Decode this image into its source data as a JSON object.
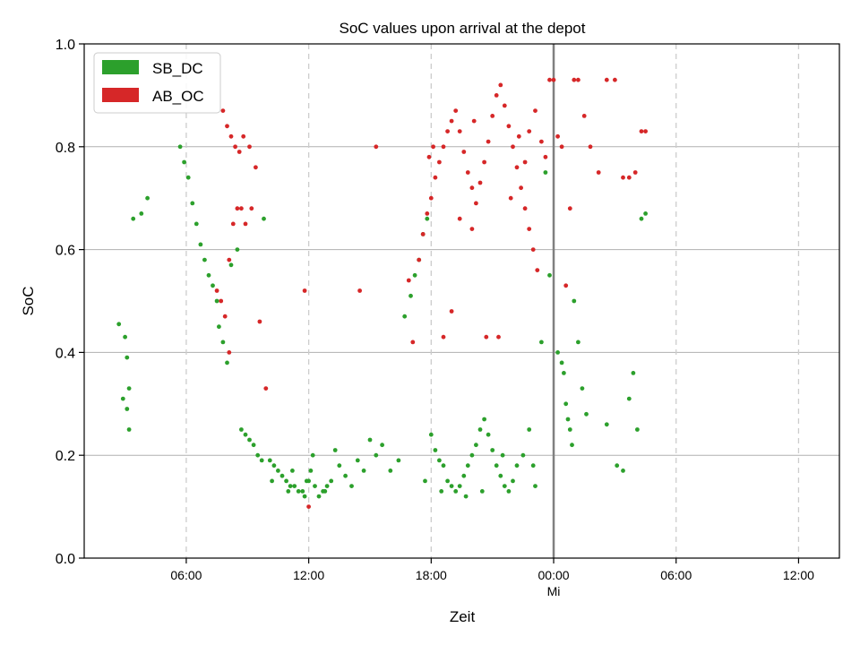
{
  "chart_data": {
    "type": "scatter",
    "title": "SoC values upon arrival at the depot",
    "xlabel": "Zeit",
    "ylabel": "SoC",
    "ylim": [
      0,
      1.0
    ],
    "xlim_hours": [
      -23,
      14
    ],
    "y_ticks": [
      0.0,
      0.2,
      0.4,
      0.6,
      0.8,
      1.0
    ],
    "y_tick_labels": [
      "0.0",
      "0.2",
      "0.4",
      "0.6",
      "0.8",
      "1.0"
    ],
    "x_ticks": [
      {
        "hour": -18,
        "label": "06:00",
        "sub": ""
      },
      {
        "hour": -12,
        "label": "12:00",
        "sub": ""
      },
      {
        "hour": -6,
        "label": "18:00",
        "sub": ""
      },
      {
        "hour": 0,
        "label": "00:00",
        "sub": "Mi"
      },
      {
        "hour": 6,
        "label": "06:00",
        "sub": ""
      },
      {
        "hour": 12,
        "label": "12:00",
        "sub": ""
      }
    ],
    "day_lines": [
      0
    ],
    "grid": "horizontal",
    "legend_position": "top-left",
    "series": [
      {
        "name": "SB_DC",
        "color": "#2ca02c",
        "points": [
          [
            -21.3,
            0.455
          ],
          [
            -21.1,
            0.31
          ],
          [
            -21.0,
            0.43
          ],
          [
            -20.9,
            0.39
          ],
          [
            -20.8,
            0.33
          ],
          [
            -20.6,
            0.66
          ],
          [
            -20.9,
            0.29
          ],
          [
            -20.8,
            0.25
          ],
          [
            -20.2,
            0.67
          ],
          [
            -19.9,
            0.7
          ],
          [
            -18.3,
            0.8
          ],
          [
            -18.1,
            0.77
          ],
          [
            -17.9,
            0.74
          ],
          [
            -17.7,
            0.69
          ],
          [
            -17.5,
            0.65
          ],
          [
            -17.3,
            0.61
          ],
          [
            -17.1,
            0.58
          ],
          [
            -16.9,
            0.55
          ],
          [
            -16.7,
            0.53
          ],
          [
            -16.5,
            0.5
          ],
          [
            -16.4,
            0.45
          ],
          [
            -16.2,
            0.42
          ],
          [
            -16.0,
            0.38
          ],
          [
            -15.8,
            0.57
          ],
          [
            -15.5,
            0.6
          ],
          [
            -15.3,
            0.25
          ],
          [
            -15.1,
            0.24
          ],
          [
            -14.9,
            0.23
          ],
          [
            -14.7,
            0.22
          ],
          [
            -14.5,
            0.2
          ],
          [
            -14.3,
            0.19
          ],
          [
            -14.2,
            0.66
          ],
          [
            -13.9,
            0.19
          ],
          [
            -13.7,
            0.18
          ],
          [
            -13.5,
            0.17
          ],
          [
            -13.3,
            0.16
          ],
          [
            -13.1,
            0.15
          ],
          [
            -12.9,
            0.14
          ],
          [
            -12.7,
            0.14
          ],
          [
            -12.5,
            0.13
          ],
          [
            -12.3,
            0.13
          ],
          [
            -12.1,
            0.15
          ],
          [
            -11.9,
            0.17
          ],
          [
            -11.7,
            0.14
          ],
          [
            -11.5,
            0.12
          ],
          [
            -11.3,
            0.13
          ],
          [
            -11.1,
            0.14
          ],
          [
            -10.9,
            0.15
          ],
          [
            -10.7,
            0.21
          ],
          [
            -10.5,
            0.18
          ],
          [
            -10.2,
            0.16
          ],
          [
            -9.9,
            0.14
          ],
          [
            -9.6,
            0.19
          ],
          [
            -9.3,
            0.17
          ],
          [
            -9.0,
            0.23
          ],
          [
            -8.7,
            0.2
          ],
          [
            -8.4,
            0.22
          ],
          [
            -8.0,
            0.17
          ],
          [
            -7.6,
            0.19
          ],
          [
            -7.3,
            0.47
          ],
          [
            -7.0,
            0.51
          ],
          [
            -6.8,
            0.55
          ],
          [
            -6.6,
            0.58
          ],
          [
            -6.4,
            0.63
          ],
          [
            -6.2,
            0.66
          ],
          [
            -6.0,
            0.24
          ],
          [
            -5.8,
            0.21
          ],
          [
            -5.6,
            0.19
          ],
          [
            -5.4,
            0.18
          ],
          [
            -5.2,
            0.15
          ],
          [
            -5.0,
            0.14
          ],
          [
            -4.8,
            0.13
          ],
          [
            -4.6,
            0.14
          ],
          [
            -4.4,
            0.16
          ],
          [
            -4.2,
            0.18
          ],
          [
            -4.0,
            0.2
          ],
          [
            -3.8,
            0.22
          ],
          [
            -3.6,
            0.25
          ],
          [
            -3.4,
            0.27
          ],
          [
            -3.2,
            0.24
          ],
          [
            -3.0,
            0.21
          ],
          [
            -2.8,
            0.18
          ],
          [
            -2.6,
            0.16
          ],
          [
            -2.4,
            0.14
          ],
          [
            -2.2,
            0.13
          ],
          [
            -2.0,
            0.15
          ],
          [
            -1.8,
            0.18
          ],
          [
            -1.5,
            0.2
          ],
          [
            -1.2,
            0.25
          ],
          [
            -0.9,
            0.14
          ],
          [
            -0.6,
            0.42
          ],
          [
            -0.4,
            0.75
          ],
          [
            -0.2,
            0.55
          ],
          [
            0.2,
            0.4
          ],
          [
            0.4,
            0.38
          ],
          [
            0.5,
            0.36
          ],
          [
            0.6,
            0.3
          ],
          [
            0.7,
            0.27
          ],
          [
            0.8,
            0.25
          ],
          [
            0.9,
            0.22
          ],
          [
            1.0,
            0.5
          ],
          [
            1.2,
            0.42
          ],
          [
            1.4,
            0.33
          ],
          [
            1.6,
            0.28
          ],
          [
            2.6,
            0.26
          ],
          [
            3.1,
            0.18
          ],
          [
            3.4,
            0.17
          ],
          [
            3.7,
            0.31
          ],
          [
            3.9,
            0.36
          ],
          [
            4.1,
            0.25
          ],
          [
            4.3,
            0.66
          ],
          [
            4.5,
            0.67
          ],
          [
            -11.2,
            0.13
          ],
          [
            -12.2,
            0.12
          ],
          [
            -12.0,
            0.15
          ],
          [
            -13.0,
            0.13
          ],
          [
            -11.8,
            0.2
          ],
          [
            -13.8,
            0.15
          ],
          [
            -12.8,
            0.17
          ],
          [
            -3.5,
            0.13
          ],
          [
            -4.3,
            0.12
          ],
          [
            -2.5,
            0.2
          ],
          [
            -1.0,
            0.18
          ],
          [
            -5.5,
            0.13
          ],
          [
            -6.3,
            0.15
          ]
        ]
      },
      {
        "name": "AB_OC",
        "color": "#d62728",
        "points": [
          [
            -16.2,
            0.87
          ],
          [
            -16.0,
            0.84
          ],
          [
            -15.8,
            0.82
          ],
          [
            -15.6,
            0.8
          ],
          [
            -15.4,
            0.79
          ],
          [
            -15.2,
            0.82
          ],
          [
            -14.9,
            0.8
          ],
          [
            -14.6,
            0.76
          ],
          [
            -16.5,
            0.52
          ],
          [
            -16.3,
            0.5
          ],
          [
            -16.1,
            0.47
          ],
          [
            -15.9,
            0.58
          ],
          [
            -15.7,
            0.65
          ],
          [
            -15.5,
            0.68
          ],
          [
            -15.3,
            0.68
          ],
          [
            -15.1,
            0.65
          ],
          [
            -14.8,
            0.68
          ],
          [
            -14.4,
            0.46
          ],
          [
            -14.1,
            0.33
          ],
          [
            -15.9,
            0.4
          ],
          [
            -12.2,
            0.52
          ],
          [
            -12.0,
            0.1
          ],
          [
            -9.5,
            0.52
          ],
          [
            -8.7,
            0.8
          ],
          [
            -7.1,
            0.54
          ],
          [
            -6.6,
            0.58
          ],
          [
            -6.4,
            0.63
          ],
          [
            -6.2,
            0.67
          ],
          [
            -6.0,
            0.7
          ],
          [
            -5.8,
            0.74
          ],
          [
            -5.6,
            0.77
          ],
          [
            -5.4,
            0.8
          ],
          [
            -5.2,
            0.83
          ],
          [
            -5.0,
            0.85
          ],
          [
            -4.8,
            0.87
          ],
          [
            -4.6,
            0.83
          ],
          [
            -4.4,
            0.79
          ],
          [
            -4.2,
            0.75
          ],
          [
            -4.0,
            0.72
          ],
          [
            -3.8,
            0.69
          ],
          [
            -3.6,
            0.73
          ],
          [
            -3.4,
            0.77
          ],
          [
            -3.2,
            0.81
          ],
          [
            -3.0,
            0.86
          ],
          [
            -2.8,
            0.9
          ],
          [
            -2.6,
            0.92
          ],
          [
            -2.4,
            0.88
          ],
          [
            -2.2,
            0.84
          ],
          [
            -2.0,
            0.8
          ],
          [
            -1.8,
            0.76
          ],
          [
            -1.6,
            0.72
          ],
          [
            -1.4,
            0.68
          ],
          [
            -1.2,
            0.64
          ],
          [
            -1.0,
            0.6
          ],
          [
            -0.8,
            0.56
          ],
          [
            -0.6,
            0.81
          ],
          [
            -0.4,
            0.78
          ],
          [
            -0.2,
            0.93
          ],
          [
            0.0,
            0.93
          ],
          [
            0.2,
            0.82
          ],
          [
            0.4,
            0.8
          ],
          [
            0.6,
            0.53
          ],
          [
            0.8,
            0.68
          ],
          [
            1.0,
            0.93
          ],
          [
            1.2,
            0.93
          ],
          [
            1.5,
            0.86
          ],
          [
            1.8,
            0.8
          ],
          [
            2.2,
            0.75
          ],
          [
            2.6,
            0.93
          ],
          [
            3.0,
            0.93
          ],
          [
            3.4,
            0.74
          ],
          [
            3.7,
            0.74
          ],
          [
            4.0,
            0.75
          ],
          [
            4.3,
            0.83
          ],
          [
            4.5,
            0.83
          ],
          [
            -5.4,
            0.43
          ],
          [
            -5.0,
            0.48
          ],
          [
            -6.9,
            0.42
          ],
          [
            -4.0,
            0.64
          ],
          [
            -3.3,
            0.43
          ],
          [
            -2.7,
            0.43
          ],
          [
            -1.4,
            0.77
          ],
          [
            -1.2,
            0.83
          ],
          [
            -4.6,
            0.66
          ],
          [
            -3.9,
            0.85
          ],
          [
            -5.9,
            0.8
          ],
          [
            -6.1,
            0.78
          ],
          [
            -2.1,
            0.7
          ],
          [
            -1.7,
            0.82
          ],
          [
            -0.9,
            0.87
          ]
        ]
      }
    ]
  }
}
